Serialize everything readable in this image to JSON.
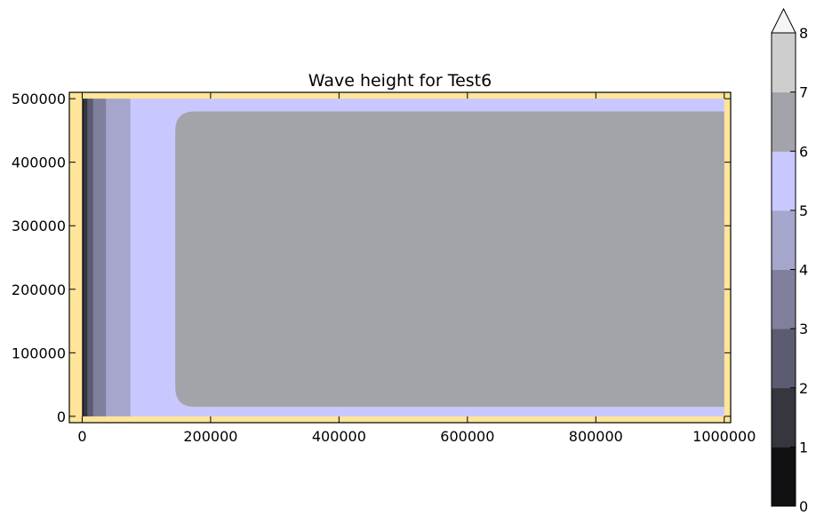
{
  "chart_data": {
    "type": "contourf",
    "title": "Wave height for Test6",
    "xlabel": "",
    "ylabel": "",
    "xlim": [
      -20000,
      1010000
    ],
    "ylim": [
      -10000,
      510000
    ],
    "x_ticks": [
      0,
      200000,
      400000,
      600000,
      800000,
      1000000
    ],
    "x_tick_labels": [
      "0",
      "200000",
      "400000",
      "600000",
      "800000",
      "1000000"
    ],
    "y_ticks": [
      0,
      100000,
      200000,
      300000,
      400000,
      500000
    ],
    "y_tick_labels": [
      "0",
      "100000",
      "200000",
      "300000",
      "400000",
      "500000"
    ],
    "land_color": "#ffe599",
    "domain": {
      "x": [
        0,
        1000000
      ],
      "y": [
        0,
        500000
      ]
    },
    "levels": [
      0,
      1,
      2,
      3,
      4,
      5,
      6,
      7,
      8
    ],
    "level_colors": [
      "#111114",
      "#36363f",
      "#5b5b71",
      "#80809d",
      "#a6a6cc",
      "#c8c8ff",
      "#a3a3aa",
      "#cecece"
    ],
    "extend": "max",
    "extend_color": "#f5f5f5",
    "colorbar_tick_labels": [
      "0",
      "1",
      "2",
      "3",
      "4",
      "5",
      "6",
      "7",
      "8"
    ],
    "wave_fronts": [
      {
        "level_index": 0,
        "x_end": 2000
      },
      {
        "level_index": 1,
        "x_end": 8000
      },
      {
        "level_index": 2,
        "x_end": 17000
      },
      {
        "level_index": 3,
        "x_end": 37000
      },
      {
        "level_index": 4,
        "x_end": 75000
      },
      {
        "level_index": 5,
        "x_end": 1000000
      },
      {
        "level_index": 6,
        "x_start": 145000,
        "x_end": 1000000,
        "y_range": [
          15000,
          480000
        ]
      }
    ]
  }
}
